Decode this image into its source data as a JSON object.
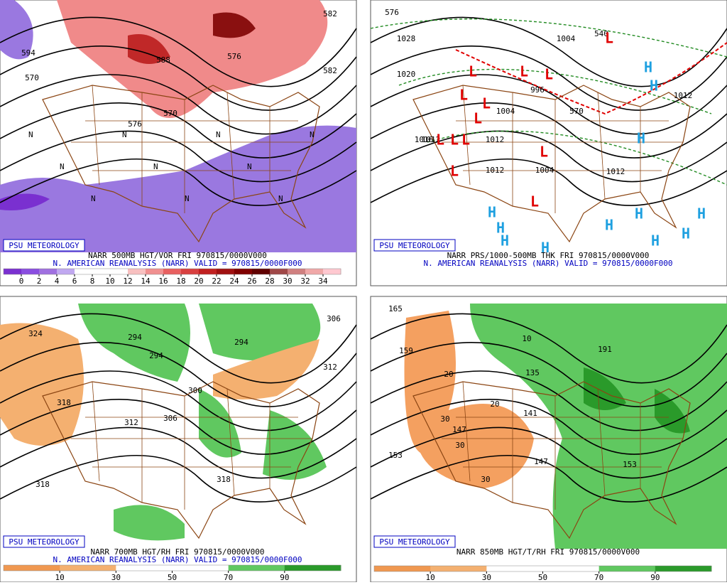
{
  "panels": [
    {
      "credit": "PSU METEOROLOGY",
      "title": "NARR 500MB HGT/VOR FRI 970815/0000V000",
      "subtitle": "N. AMERICAN REANALYSIS (NARR) VALID = 970815/0000F000",
      "colorbar": {
        "ticks": [
          0,
          2,
          4,
          6,
          8,
          10,
          12,
          14,
          16,
          18,
          20,
          22,
          24,
          26,
          28,
          30,
          32,
          34
        ],
        "colors": [
          "#7a30d0",
          "#8a4ee0",
          "#a070e0",
          "#c0a8f0",
          "#ffffff",
          "#ffffff",
          "#ffffff",
          "#f8c0c0",
          "#f09090",
          "#e86060",
          "#d84040",
          "#c02020",
          "#a01010",
          "#800000",
          "#600000",
          "#a04848",
          "#d08080",
          "#f0a8a8",
          "#ffc8d0"
        ]
      },
      "contour_labels": [
        "594",
        "588",
        "582",
        "576",
        "570",
        "576",
        "582",
        "570"
      ],
      "symbols": [
        "N",
        "N",
        "N",
        "N",
        "N",
        "N",
        "N",
        "N",
        "N",
        "N"
      ]
    },
    {
      "credit": "PSU METEOROLOGY",
      "title": "NARR PRS/1000-500MB THK FRI 970815/0000V000",
      "subtitle": "N. AMERICAN REANALYSIS (NARR) VALID = 970815/0000F000",
      "contour_labels": [
        "576",
        "1028",
        "1020",
        "1004",
        "996",
        "1004",
        "1012",
        "1012",
        "1012",
        "1004",
        "1012",
        "1012",
        "1016",
        "540",
        "570"
      ],
      "lows": [
        "L",
        "L",
        "L",
        "L",
        "L",
        "L",
        "L",
        "L",
        "L",
        "L",
        "L",
        "L",
        "L"
      ],
      "highs": [
        "H",
        "H",
        "H",
        "H",
        "H",
        "H",
        "H",
        "H",
        "H",
        "H",
        "H",
        "H"
      ]
    },
    {
      "credit": "PSU METEOROLOGY",
      "title": "NARR 700MB HGT/RH FRI 970815/0000V000",
      "subtitle": "N. AMERICAN REANALYSIS (NARR) VALID = 970815/0000F000",
      "colorbar": {
        "ticks": [
          10,
          30,
          50,
          70,
          90
        ],
        "colors": [
          "#f09850",
          "#f4b070",
          "#ffffff",
          "#ffffff",
          "#60c860",
          "#2a9a2a"
        ]
      },
      "contour_labels": [
        "324",
        "294",
        "294",
        "294",
        "306",
        "300",
        "306",
        "312",
        "318",
        "312",
        "318",
        "318"
      ]
    },
    {
      "credit": "PSU METEOROLOGY",
      "title": "NARR 850MB HGT/T/RH FRI 970815/0000V000",
      "colorbar": {
        "ticks": [
          10,
          30,
          50,
          70,
          90
        ],
        "colors": [
          "#f09850",
          "#f4b070",
          "#ffffff",
          "#ffffff",
          "#60c860",
          "#2a9a2a"
        ]
      },
      "contour_labels": [
        "165",
        "159",
        "153",
        "147",
        "141",
        "135",
        "147",
        "153",
        "191",
        "10",
        "20",
        "20",
        "30",
        "30",
        "30"
      ]
    }
  ]
}
